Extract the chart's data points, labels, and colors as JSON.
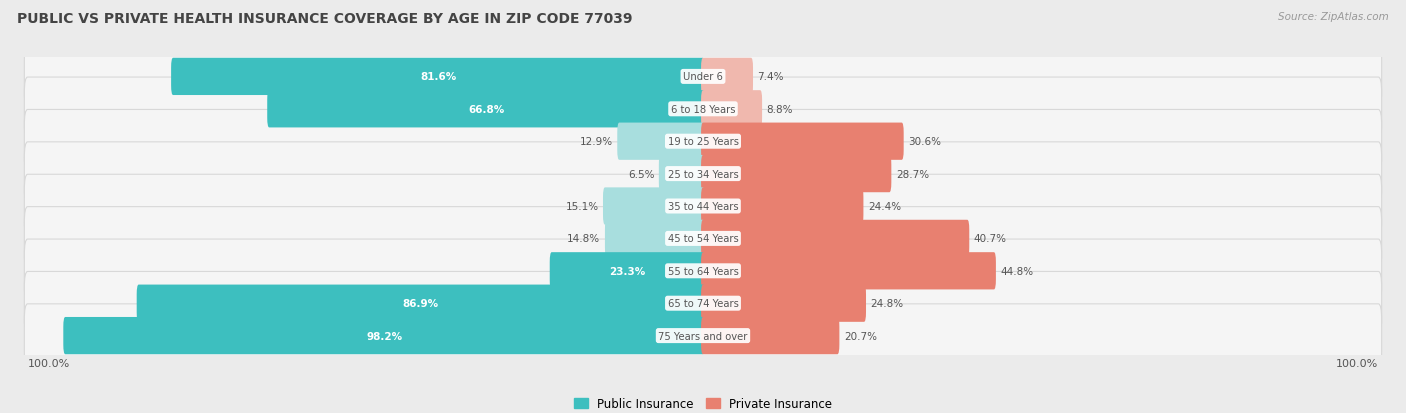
{
  "title": "PUBLIC VS PRIVATE HEALTH INSURANCE COVERAGE BY AGE IN ZIP CODE 77039",
  "source": "Source: ZipAtlas.com",
  "categories": [
    "Under 6",
    "6 to 18 Years",
    "19 to 25 Years",
    "25 to 34 Years",
    "35 to 44 Years",
    "45 to 54 Years",
    "55 to 64 Years",
    "65 to 74 Years",
    "75 Years and over"
  ],
  "public_values": [
    81.6,
    66.8,
    12.9,
    6.5,
    15.1,
    14.8,
    23.3,
    86.9,
    98.2
  ],
  "private_values": [
    7.4,
    8.8,
    30.6,
    28.7,
    24.4,
    40.7,
    44.8,
    24.8,
    20.7
  ],
  "public_color": "#3dbfbf",
  "private_color": "#e88070",
  "public_color_light": "#a8dede",
  "private_color_light": "#f0b8ae",
  "background_color": "#ebebeb",
  "row_bg_color": "#f5f5f5",
  "row_border_color": "#d8d8d8",
  "label_color": "#555555",
  "white_label_color": "#ffffff",
  "title_color": "#444444",
  "center_label_color": "#555555",
  "axis_label_100": "100.0%",
  "legend_public": "Public Insurance",
  "legend_private": "Private Insurance"
}
